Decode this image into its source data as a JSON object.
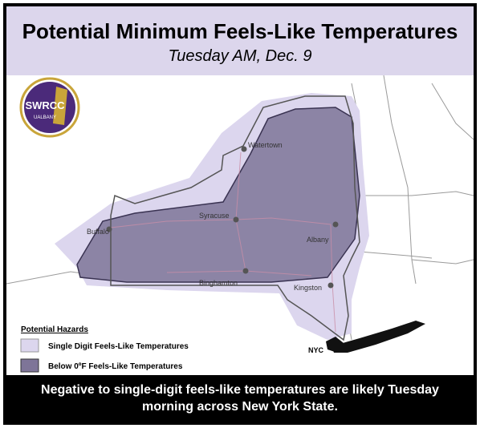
{
  "header": {
    "title": "Potential Minimum Feels-Like Temperatures",
    "subtitle": "Tuesday AM, Dec. 9"
  },
  "logo": {
    "name": "SWRCC",
    "subtext": "UALBANY"
  },
  "cities": [
    {
      "label": "Watertown"
    },
    {
      "label": "Syracuse"
    },
    {
      "label": "Buffalo"
    },
    {
      "label": "Albany"
    },
    {
      "label": "Binghamton"
    },
    {
      "label": "Kingston"
    },
    {
      "label": "NYC"
    }
  ],
  "legend": {
    "title": "Potential Hazards",
    "items": [
      {
        "label": "Single Digit Feels-Like Temperatures",
        "color": "#dcd6ee"
      },
      {
        "label": "Below 0ºF Feels-Like Temperatures",
        "color": "#7e7598"
      }
    ]
  },
  "footer": {
    "text": "Negative to single-digit feels-like temperatures are likely Tuesday morning across New York State."
  }
}
